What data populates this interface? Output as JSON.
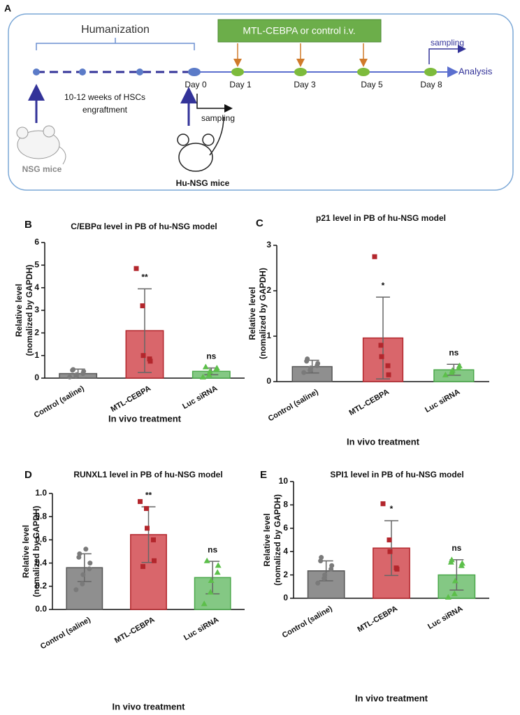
{
  "diagram": {
    "panel": "A",
    "humanization": "Humanization",
    "treatment": "MTL-CEBPA or control i.v.",
    "sampling_top": "sampling",
    "analysis": "Analysis",
    "days": [
      "Day 0",
      "Day 1",
      "Day 3",
      "Day 5",
      "Day 8"
    ],
    "engraftment": [
      "10-12  weeks of HSCs",
      "engraftment"
    ],
    "sampling_bottom": "sampling",
    "nsg": "NSG mice",
    "hu_nsg": "Hu-NSG mice"
  },
  "chart_data": [
    {
      "type": "bar",
      "panel": "B",
      "title": "C/EBPα level in PB of hu-NSG model",
      "xlabel": "In vivo treatment",
      "ylabel": [
        "Relative level",
        "(nomalized by GAPDH)"
      ],
      "categories": [
        "Control (saline)",
        "MTL-CEBPA",
        "Luc siRNA"
      ],
      "values": [
        0.2,
        2.1,
        0.3
      ],
      "errors": [
        0.2,
        1.85,
        0.15
      ],
      "points": [
        [
          0.05,
          0.1,
          0.15,
          0.2,
          0.3,
          0.35,
          0.38
        ],
        [
          4.85,
          3.2,
          1.0,
          0.85,
          0.75
        ],
        [
          0.05,
          0.15,
          0.3,
          0.4,
          0.45,
          0.5
        ]
      ],
      "annotations": [
        "",
        "**",
        "ns"
      ],
      "colors": [
        "#8f8f8f",
        "#d9666b",
        "#84c884"
      ],
      "edge_colors": [
        "#555555",
        "#b3262c",
        "#4aa84a"
      ],
      "markers": [
        "circle",
        "square",
        "triangle"
      ],
      "ylim": [
        0,
        6
      ],
      "yticks": [
        0,
        1,
        2,
        3,
        4,
        5,
        6
      ]
    },
    {
      "type": "bar",
      "panel": "C",
      "title": "p21 level in PB of hu-NSG model",
      "xlabel": "In vivo treatment",
      "ylabel": [
        "Relative level",
        "(nomalized by GAPDH)"
      ],
      "categories": [
        "Control (saline)",
        "MTL-CEBPA",
        "Luc siRNA"
      ],
      "values": [
        0.33,
        0.96,
        0.26
      ],
      "errors": [
        0.14,
        0.9,
        0.12
      ],
      "points": [
        [
          0.2,
          0.25,
          0.3,
          0.35,
          0.4,
          0.45,
          0.5
        ],
        [
          2.75,
          0.8,
          0.55,
          0.35,
          0.15
        ],
        [
          0.15,
          0.2,
          0.25,
          0.3,
          0.35
        ]
      ],
      "annotations": [
        "",
        "*",
        "ns"
      ],
      "colors": [
        "#8f8f8f",
        "#d9666b",
        "#84c884"
      ],
      "edge_colors": [
        "#555555",
        "#b3262c",
        "#4aa84a"
      ],
      "markers": [
        "circle",
        "square",
        "triangle"
      ],
      "ylim": [
        0,
        3
      ],
      "yticks": [
        0,
        1,
        2,
        3
      ]
    },
    {
      "type": "bar",
      "panel": "D",
      "title": "RUNXL1 level in PB of hu-NSG model",
      "xlabel": "In vivo treatment",
      "ylabel": [
        "Relative level",
        "(nomalized by GAPDH)"
      ],
      "categories": [
        "Control (saline)",
        "MTL-CEBPA",
        "Luc siRNA"
      ],
      "values": [
        0.36,
        0.645,
        0.275
      ],
      "errors": [
        0.12,
        0.24,
        0.14
      ],
      "points": [
        [
          0.17,
          0.22,
          0.3,
          0.35,
          0.4,
          0.45,
          0.48,
          0.52
        ],
        [
          0.93,
          0.87,
          0.7,
          0.6,
          0.42,
          0.37
        ],
        [
          0.05,
          0.15,
          0.25,
          0.32,
          0.38,
          0.42
        ]
      ],
      "annotations": [
        "",
        "**",
        "ns"
      ],
      "colors": [
        "#8f8f8f",
        "#d9666b",
        "#84c884"
      ],
      "edge_colors": [
        "#555555",
        "#b3262c",
        "#4aa84a"
      ],
      "markers": [
        "circle",
        "square",
        "triangle"
      ],
      "ylim": [
        0,
        1
      ],
      "yticks": [
        {
          "value": 0,
          "label": "0.0"
        },
        0.2,
        0.4,
        0.6,
        0.8,
        {
          "value": 1,
          "label": "1.0"
        }
      ]
    },
    {
      "type": "bar",
      "panel": "E",
      "title": "SPI1 level in PB of hu-NSG model",
      "xlabel": "In vivo treatment",
      "ylabel": [
        "Relative level",
        "(nomalized by GAPDH)"
      ],
      "categories": [
        "Control (saline)",
        "MTL-CEBPA",
        "Luc siRNA"
      ],
      "values": [
        2.35,
        4.3,
        2.0
      ],
      "errors": [
        0.85,
        2.35,
        1.3
      ],
      "points": [
        [
          1.3,
          1.7,
          2.0,
          2.5,
          2.8,
          3.2,
          3.5
        ],
        [
          8.1,
          5.0,
          4.0,
          2.6,
          2.5
        ],
        [
          0.1,
          0.4,
          1.5,
          2.8,
          3.0,
          3.1,
          3.3
        ]
      ],
      "annotations": [
        "",
        "*",
        "ns"
      ],
      "colors": [
        "#8f8f8f",
        "#d9666b",
        "#84c884"
      ],
      "edge_colors": [
        "#555555",
        "#b3262c",
        "#4aa84a"
      ],
      "markers": [
        "circle",
        "square",
        "triangle"
      ],
      "ylim": [
        0,
        10
      ],
      "yticks": [
        0,
        2,
        4,
        6,
        8,
        10
      ]
    }
  ]
}
